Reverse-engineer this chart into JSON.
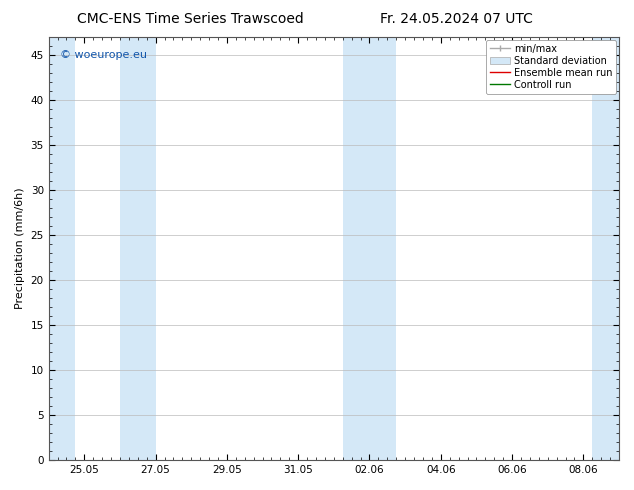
{
  "title_left": "CMC-ENS Time Series Trawscoed",
  "title_right": "Fr. 24.05.2024 07 UTC",
  "ylabel": "Precipitation (mm/6h)",
  "watermark": "© woeurope.eu",
  "ylim": [
    0,
    47
  ],
  "yticks": [
    0,
    5,
    10,
    15,
    20,
    25,
    30,
    35,
    40,
    45
  ],
  "shade_color": "#d4e8f7",
  "shade_alpha": 1.0,
  "bg_color": "#ffffff",
  "plot_bg_color": "#ffffff",
  "xtick_labels": [
    "25.05",
    "27.05",
    "29.05",
    "31.05",
    "02.06",
    "04.06",
    "06.06",
    "08.06"
  ],
  "shade_bands": [
    [
      0.0,
      0.75
    ],
    [
      2.0,
      3.0
    ],
    [
      8.25,
      9.0
    ],
    [
      9.0,
      9.75
    ],
    [
      15.25,
      16.0
    ]
  ],
  "xlim": [
    0.0,
    16.0
  ],
  "title_fontsize": 10,
  "tick_fontsize": 7.5,
  "ylabel_fontsize": 8,
  "legend_fontsize": 7,
  "watermark_fontsize": 8
}
